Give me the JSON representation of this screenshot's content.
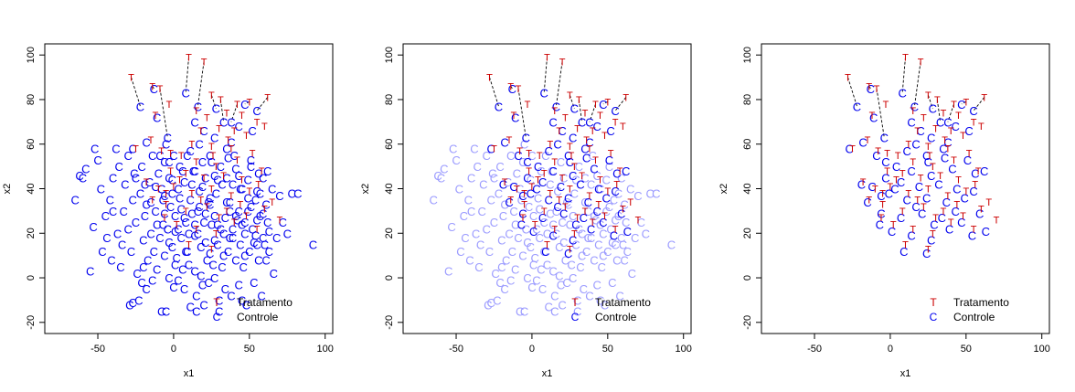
{
  "colors": {
    "treatment": "#cc0000",
    "control": "#0000ee",
    "control_faded": "#9c9cff",
    "link": "#000000"
  },
  "legend": {
    "treatment_symbol": "T",
    "treatment_label": "Tratamento",
    "control_symbol": "C",
    "control_label": "Controle",
    "placement": "bottom-right"
  },
  "chart_data": [
    {
      "type": "scatter",
      "panel": "all-units",
      "xlabel": "x1",
      "ylabel": "x2",
      "xlim": [
        -85,
        105
      ],
      "ylim": [
        -25,
        105
      ],
      "xticks": [
        "-50",
        "0",
        "50",
        "100"
      ],
      "yticks": [
        "-20",
        "0",
        "20",
        "40",
        "60",
        "80",
        "100"
      ],
      "grid": false,
      "control_style": "solid",
      "show_unmatched_controls": true
    },
    {
      "type": "scatter",
      "panel": "matched-highlighted",
      "xlabel": "x1",
      "ylabel": "x2",
      "xlim": [
        -85,
        105
      ],
      "ylim": [
        -25,
        105
      ],
      "xticks": [
        "-50",
        "0",
        "50",
        "100"
      ],
      "yticks": [
        "-20",
        "0",
        "20",
        "40",
        "60",
        "80",
        "100"
      ],
      "grid": false,
      "control_style": "faded",
      "show_unmatched_controls": true
    },
    {
      "type": "scatter",
      "panel": "matched-only",
      "xlabel": "x1",
      "ylabel": "x2",
      "xlim": [
        -85,
        105
      ],
      "ylim": [
        -25,
        105
      ],
      "xticks": [
        "-50",
        "0",
        "50",
        "100"
      ],
      "yticks": [
        "-20",
        "0",
        "20",
        "40",
        "60",
        "80",
        "100"
      ],
      "grid": false,
      "control_style": "none",
      "show_unmatched_controls": false
    }
  ],
  "scatter_points": {
    "treatment": [
      [
        -28,
        90
      ],
      [
        -14,
        86
      ],
      [
        -9,
        85
      ],
      [
        -3,
        78
      ],
      [
        -12,
        73
      ],
      [
        -25,
        58
      ],
      [
        -15,
        62
      ],
      [
        -8,
        57
      ],
      [
        -2,
        56
      ],
      [
        -18,
        43
      ],
      [
        -10,
        40
      ],
      [
        -5,
        38
      ],
      [
        10,
        99
      ],
      [
        20,
        97
      ],
      [
        25,
        82
      ],
      [
        31,
        80
      ],
      [
        42,
        78
      ],
      [
        50,
        79
      ],
      [
        62,
        81
      ],
      [
        15,
        75
      ],
      [
        22,
        72
      ],
      [
        35,
        74
      ],
      [
        45,
        73
      ],
      [
        55,
        70
      ],
      [
        60,
        68
      ],
      [
        18,
        66
      ],
      [
        30,
        67
      ],
      [
        40,
        66
      ],
      [
        48,
        64
      ],
      [
        12,
        60
      ],
      [
        25,
        59
      ],
      [
        38,
        58
      ],
      [
        5,
        55
      ],
      [
        15,
        52
      ],
      [
        28,
        50
      ],
      [
        42,
        53
      ],
      [
        52,
        56
      ],
      [
        8,
        47
      ],
      [
        20,
        45
      ],
      [
        33,
        46
      ],
      [
        45,
        44
      ],
      [
        58,
        48
      ],
      [
        0,
        41
      ],
      [
        12,
        38
      ],
      [
        25,
        40
      ],
      [
        38,
        37
      ],
      [
        50,
        39
      ],
      [
        -5,
        33
      ],
      [
        8,
        30
      ],
      [
        22,
        32
      ],
      [
        35,
        30
      ],
      [
        48,
        28
      ],
      [
        60,
        31
      ],
      [
        70,
        26
      ],
      [
        2,
        24
      ],
      [
        15,
        22
      ],
      [
        28,
        20
      ],
      [
        40,
        25
      ],
      [
        55,
        22
      ],
      [
        65,
        34
      ],
      [
        10,
        15
      ],
      [
        25,
        13
      ],
      [
        -6,
        27
      ],
      [
        -14,
        35
      ],
      [
        4,
        44
      ],
      [
        18,
        35
      ],
      [
        30,
        27
      ],
      [
        44,
        33
      ],
      [
        56,
        42
      ],
      [
        -2,
        48
      ],
      [
        26,
        55
      ],
      [
        36,
        62
      ]
    ],
    "control_matched": [
      [
        -22,
        77
      ],
      [
        -13,
        85
      ],
      [
        -4,
        63
      ],
      [
        -11,
        72
      ],
      [
        -27,
        58
      ],
      [
        -18,
        61
      ],
      [
        -9,
        55
      ],
      [
        -3,
        52
      ],
      [
        -19,
        42
      ],
      [
        -12,
        41
      ],
      [
        -6,
        37
      ],
      [
        8,
        83
      ],
      [
        16,
        77
      ],
      [
        28,
        76
      ],
      [
        38,
        70
      ],
      [
        47,
        78
      ],
      [
        55,
        75
      ],
      [
        14,
        70
      ],
      [
        20,
        66
      ],
      [
        33,
        70
      ],
      [
        43,
        68
      ],
      [
        52,
        66
      ],
      [
        17,
        60
      ],
      [
        27,
        63
      ],
      [
        38,
        61
      ],
      [
        11,
        57
      ],
      [
        24,
        55
      ],
      [
        36,
        54
      ],
      [
        4,
        50
      ],
      [
        14,
        48
      ],
      [
        27,
        46
      ],
      [
        41,
        49
      ],
      [
        51,
        53
      ],
      [
        7,
        43
      ],
      [
        19,
        41
      ],
      [
        32,
        42
      ],
      [
        44,
        40
      ],
      [
        56,
        47
      ],
      [
        -1,
        38
      ],
      [
        11,
        35
      ],
      [
        24,
        36
      ],
      [
        37,
        34
      ],
      [
        49,
        36
      ],
      [
        -6,
        29
      ],
      [
        7,
        27
      ],
      [
        21,
        29
      ],
      [
        34,
        27
      ],
      [
        47,
        25
      ],
      [
        59,
        29
      ],
      [
        63,
        21
      ],
      [
        1,
        21
      ],
      [
        14,
        19
      ],
      [
        27,
        17
      ],
      [
        39,
        22
      ],
      [
        54,
        19
      ],
      [
        62,
        48
      ],
      [
        9,
        12
      ],
      [
        24,
        11
      ],
      [
        -7,
        24
      ],
      [
        -15,
        34
      ],
      [
        3,
        40
      ],
      [
        17,
        32
      ],
      [
        29,
        24
      ],
      [
        43,
        30
      ],
      [
        55,
        39
      ],
      [
        -3,
        45
      ],
      [
        25,
        52
      ],
      [
        35,
        58
      ]
    ],
    "control_unmatched": [
      [
        -65,
        35
      ],
      [
        -55,
        3
      ],
      [
        -60,
        45
      ],
      [
        -58,
        49
      ],
      [
        -52,
        58
      ],
      [
        -50,
        53
      ],
      [
        -48,
        40
      ],
      [
        -45,
        28
      ],
      [
        -44,
        18
      ],
      [
        -42,
        35
      ],
      [
        -40,
        45
      ],
      [
        -38,
        58
      ],
      [
        -36,
        50
      ],
      [
        -35,
        5
      ],
      [
        -34,
        15
      ],
      [
        -33,
        30
      ],
      [
        -32,
        42
      ],
      [
        -30,
        55
      ],
      [
        -30,
        22
      ],
      [
        -28,
        12
      ],
      [
        -27,
        35
      ],
      [
        -26,
        47
      ],
      [
        -25,
        25
      ],
      [
        -24,
        2
      ],
      [
        -23,
        -10
      ],
      [
        -22,
        38
      ],
      [
        -21,
        50
      ],
      [
        -20,
        17
      ],
      [
        -19,
        28
      ],
      [
        -18,
        -5
      ],
      [
        -17,
        8
      ],
      [
        -16,
        43
      ],
      [
        -15,
        20
      ],
      [
        -14,
        55
      ],
      [
        -13,
        12
      ],
      [
        -12,
        30
      ],
      [
        -11,
        4
      ],
      [
        -10,
        47
      ],
      [
        -9,
        18
      ],
      [
        -8,
        -15
      ],
      [
        -7,
        35
      ],
      [
        -6,
        10
      ],
      [
        -5,
        60
      ],
      [
        -4,
        22
      ],
      [
        -3,
        0
      ],
      [
        -2,
        32
      ],
      [
        -1,
        14
      ],
      [
        0,
        -4
      ],
      [
        1,
        28
      ],
      [
        2,
        9
      ],
      [
        3,
        -1
      ],
      [
        4,
        36
      ],
      [
        5,
        18
      ],
      [
        6,
        4
      ],
      [
        7,
        -5
      ],
      [
        8,
        25
      ],
      [
        9,
        55
      ],
      [
        10,
        6
      ],
      [
        11,
        -13
      ],
      [
        12,
        29
      ],
      [
        13,
        48
      ],
      [
        14,
        3
      ],
      [
        15,
        -8
      ],
      [
        16,
        20
      ],
      [
        17,
        39
      ],
      [
        18,
        1
      ],
      [
        19,
        -3
      ],
      [
        20,
        25
      ],
      [
        21,
        45
      ],
      [
        22,
        8
      ],
      [
        23,
        -2
      ],
      [
        24,
        33
      ],
      [
        26,
        6
      ],
      [
        27,
        0
      ],
      [
        28,
        38
      ],
      [
        29,
        15
      ],
      [
        30,
        -10
      ],
      [
        31,
        50
      ],
      [
        32,
        5
      ],
      [
        33,
        20
      ],
      [
        34,
        -5
      ],
      [
        35,
        45
      ],
      [
        36,
        12
      ],
      [
        37,
        30
      ],
      [
        38,
        -8
      ],
      [
        39,
        18
      ],
      [
        40,
        55
      ],
      [
        41,
        8
      ],
      [
        42,
        26
      ],
      [
        43,
        -3
      ],
      [
        44,
        15
      ],
      [
        45,
        40
      ],
      [
        46,
        5
      ],
      [
        47,
        20
      ],
      [
        48,
        -12
      ],
      [
        49,
        30
      ],
      [
        50,
        12
      ],
      [
        51,
        50
      ],
      [
        52,
        22
      ],
      [
        53,
        -2
      ],
      [
        54,
        35
      ],
      [
        55,
        15
      ],
      [
        56,
        8
      ],
      [
        57,
        28
      ],
      [
        58,
        -8
      ],
      [
        59,
        45
      ],
      [
        60,
        15
      ],
      [
        61,
        33
      ],
      [
        62,
        25
      ],
      [
        63,
        12
      ],
      [
        65,
        40
      ],
      [
        66,
        2
      ],
      [
        68,
        18
      ],
      [
        70,
        37
      ],
      [
        72,
        25
      ],
      [
        75,
        20
      ],
      [
        78,
        38
      ],
      [
        82,
        38
      ],
      [
        92,
        15
      ],
      [
        -62,
        46
      ],
      [
        -53,
        23
      ],
      [
        -47,
        12
      ],
      [
        -41,
        8
      ],
      [
        -37,
        20
      ],
      [
        -29,
        -12
      ],
      [
        -27,
        -11
      ],
      [
        -21,
        -2
      ],
      [
        -18,
        33
      ],
      [
        -14,
        -1
      ],
      [
        -11,
        24
      ],
      [
        -8,
        40
      ],
      [
        -6,
        52
      ],
      [
        -3,
        16
      ],
      [
        -1,
        44
      ],
      [
        1,
        6
      ],
      [
        3,
        22
      ],
      [
        5,
        31
      ],
      [
        6,
        48
      ],
      [
        8,
        12
      ],
      [
        10,
        20
      ],
      [
        12,
        42
      ],
      [
        14,
        24
      ],
      [
        16,
        30
      ],
      [
        18,
        14
      ],
      [
        19,
        52
      ],
      [
        21,
        16
      ],
      [
        23,
        34
      ],
      [
        25,
        24
      ],
      [
        27,
        28
      ],
      [
        29,
        44
      ],
      [
        31,
        22
      ],
      [
        33,
        10
      ],
      [
        35,
        34
      ],
      [
        37,
        18
      ],
      [
        39,
        42
      ],
      [
        41,
        28
      ],
      [
        43,
        46
      ],
      [
        45,
        24
      ],
      [
        47,
        10
      ],
      [
        49,
        44
      ],
      [
        51,
        32
      ],
      [
        53,
        16
      ],
      [
        55,
        26
      ],
      [
        57,
        38
      ],
      [
        59,
        18
      ],
      [
        61,
        8
      ],
      [
        0,
        55
      ],
      [
        -25,
        45
      ],
      [
        -40,
        30
      ],
      [
        -20,
        5
      ],
      [
        30,
        -15
      ],
      [
        -5,
        -15
      ],
      [
        15,
        -15
      ],
      [
        45,
        -10
      ],
      [
        20,
        -12
      ]
    ],
    "links": [
      [
        [
          -28,
          90
        ],
        [
          -22,
          77
        ]
      ],
      [
        [
          -14,
          86
        ],
        [
          -13,
          85
        ]
      ],
      [
        [
          -9,
          85
        ],
        [
          -4,
          63
        ]
      ],
      [
        [
          10,
          99
        ],
        [
          8,
          83
        ]
      ],
      [
        [
          20,
          97
        ],
        [
          16,
          77
        ]
      ],
      [
        [
          25,
          82
        ],
        [
          28,
          76
        ]
      ],
      [
        [
          42,
          78
        ],
        [
          38,
          70
        ]
      ],
      [
        [
          50,
          79
        ],
        [
          47,
          78
        ]
      ],
      [
        [
          62,
          81
        ],
        [
          55,
          75
        ]
      ],
      [
        [
          31,
          80
        ],
        [
          33,
          70
        ]
      ]
    ]
  }
}
